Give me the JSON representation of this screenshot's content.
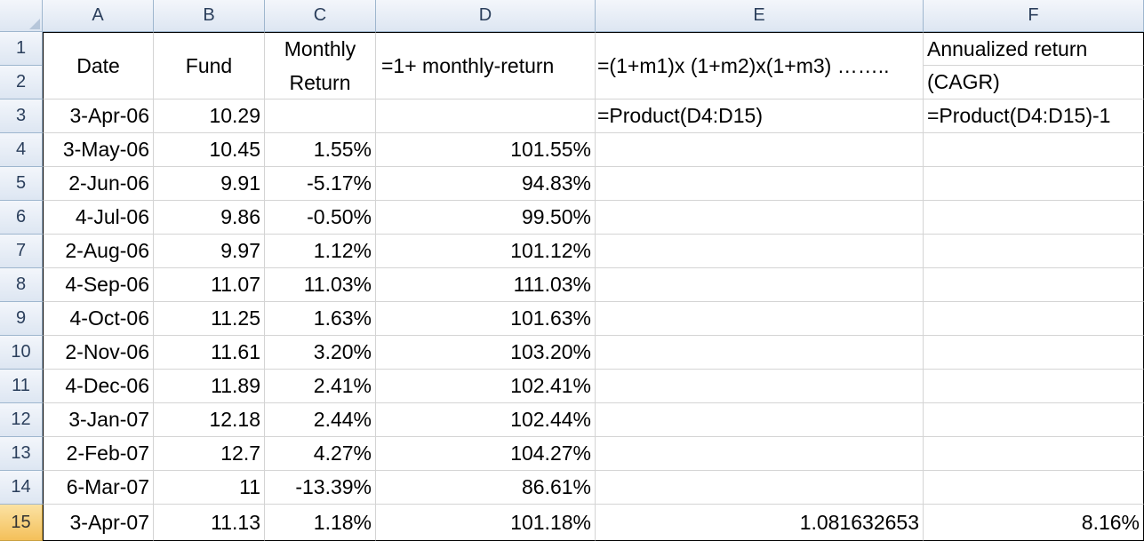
{
  "columns": [
    "A",
    "B",
    "C",
    "D",
    "E",
    "F"
  ],
  "rows": [
    "1",
    "2",
    "3",
    "4",
    "5",
    "6",
    "7",
    "8",
    "9",
    "10",
    "11",
    "12",
    "13",
    "14",
    "15"
  ],
  "header": {
    "date": "Date",
    "fund": "Fund",
    "monthly_return_1": "Monthly",
    "monthly_return_2": "Return",
    "d_formula": "=1+ monthly-return",
    "e_formula": "=(1+m1)x (1+m2)x(1+m3) ……..",
    "f_title_1": "Annualized return",
    "f_title_2": "(CAGR)"
  },
  "row3": {
    "date": "3-Apr-06",
    "fund": "10.29",
    "e": "=Product(D4:D15)",
    "f": "=Product(D4:D15)-1"
  },
  "data": [
    {
      "date": "3-May-06",
      "fund": "10.45",
      "ret": "1.55%",
      "d": "101.55%"
    },
    {
      "date": "2-Jun-06",
      "fund": "9.91",
      "ret": "-5.17%",
      "d": "94.83%"
    },
    {
      "date": "4-Jul-06",
      "fund": "9.86",
      "ret": "-0.50%",
      "d": "99.50%"
    },
    {
      "date": "2-Aug-06",
      "fund": "9.97",
      "ret": "1.12%",
      "d": "101.12%"
    },
    {
      "date": "4-Sep-06",
      "fund": "11.07",
      "ret": "11.03%",
      "d": "111.03%"
    },
    {
      "date": "4-Oct-06",
      "fund": "11.25",
      "ret": "1.63%",
      "d": "101.63%"
    },
    {
      "date": "2-Nov-06",
      "fund": "11.61",
      "ret": "3.20%",
      "d": "103.20%"
    },
    {
      "date": "4-Dec-06",
      "fund": "11.89",
      "ret": "2.41%",
      "d": "102.41%"
    },
    {
      "date": "3-Jan-07",
      "fund": "12.18",
      "ret": "2.44%",
      "d": "102.44%"
    },
    {
      "date": "2-Feb-07",
      "fund": "12.7",
      "ret": "4.27%",
      "d": "104.27%"
    },
    {
      "date": "6-Mar-07",
      "fund": "11",
      "ret": "-13.39%",
      "d": "86.61%"
    },
    {
      "date": "3-Apr-07",
      "fund": "11.13",
      "ret": "1.18%",
      "d": "101.18%"
    }
  ],
  "row15": {
    "e": "1.081632653",
    "f": "8.16%"
  }
}
